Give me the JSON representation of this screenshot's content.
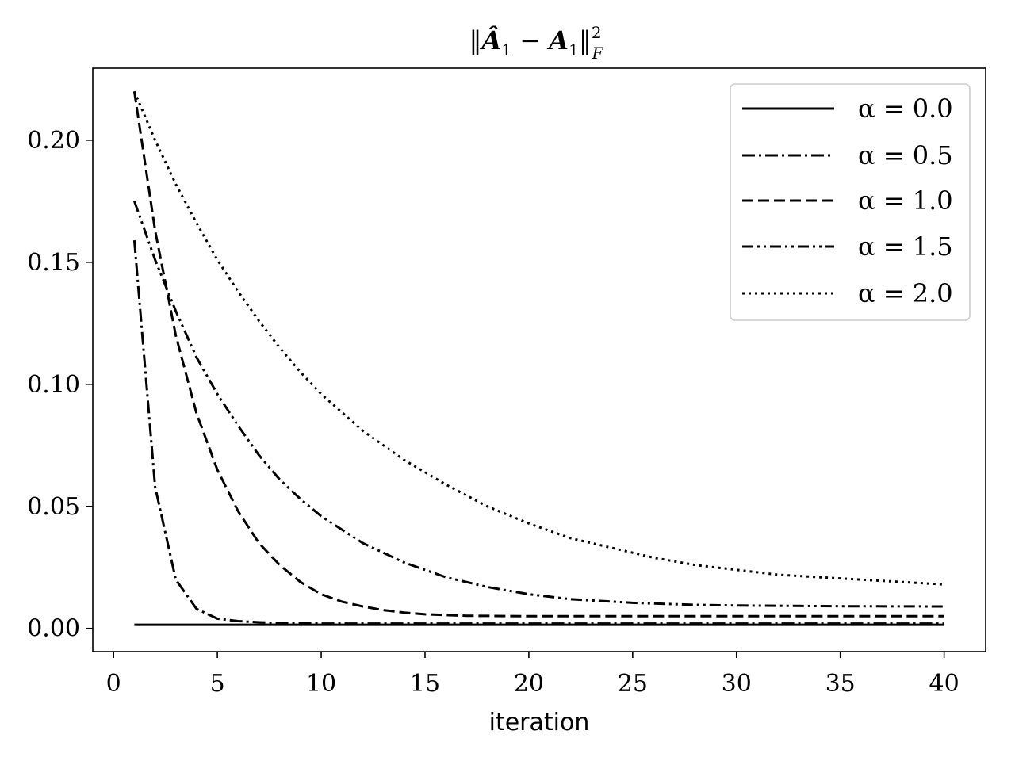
{
  "chart_data": {
    "type": "line",
    "title_parts": {
      "open": "‖",
      "hat_symbol": "Â",
      "sub1": "1",
      "minus": " − ",
      "symbol": "A",
      "sub2": "1",
      "close": "‖",
      "sup": "2",
      "sub_F": "F"
    },
    "xlabel": "iteration",
    "ylabel": "",
    "xlim": [
      -1,
      42
    ],
    "ylim": [
      -0.0095,
      0.2295
    ],
    "xticks": [
      0,
      5,
      10,
      15,
      20,
      25,
      30,
      35,
      40
    ],
    "xtick_labels": [
      "0",
      "5",
      "10",
      "15",
      "20",
      "25",
      "30",
      "35",
      "40"
    ],
    "yticks": [
      0.0,
      0.05,
      0.1,
      0.15,
      0.2
    ],
    "ytick_labels": [
      "0.00",
      "0.05",
      "0.10",
      "0.15",
      "0.20"
    ],
    "legend_position": "top-right",
    "grid": false,
    "series": [
      {
        "name": "α = 0.0",
        "style": "solid",
        "x": [
          1,
          2,
          3,
          4,
          5,
          6,
          8,
          10,
          15,
          20,
          25,
          30,
          35,
          40
        ],
        "y": [
          0.0015,
          0.0015,
          0.0015,
          0.0015,
          0.0015,
          0.0015,
          0.0015,
          0.0015,
          0.0015,
          0.0015,
          0.0015,
          0.0015,
          0.0015,
          0.0015
        ]
      },
      {
        "name": "α = 0.5",
        "style": "dashdot",
        "x": [
          1,
          2,
          3,
          4,
          5,
          6,
          7,
          8,
          10,
          15,
          20,
          25,
          30,
          35,
          40
        ],
        "y": [
          0.159,
          0.058,
          0.02,
          0.008,
          0.004,
          0.003,
          0.0025,
          0.0022,
          0.002,
          0.002,
          0.002,
          0.002,
          0.002,
          0.002,
          0.002
        ]
      },
      {
        "name": "α = 1.0",
        "style": "dashed",
        "x": [
          1,
          2,
          3,
          4,
          5,
          6,
          7,
          8,
          9,
          10,
          11,
          12,
          13,
          14,
          15,
          17,
          20,
          25,
          30,
          35,
          40
        ],
        "y": [
          0.22,
          0.163,
          0.12,
          0.088,
          0.065,
          0.048,
          0.035,
          0.026,
          0.019,
          0.014,
          0.011,
          0.009,
          0.0075,
          0.0065,
          0.0058,
          0.0052,
          0.005,
          0.005,
          0.005,
          0.005,
          0.005
        ]
      },
      {
        "name": "α = 1.5",
        "style": "dashdotdot",
        "x": [
          1,
          2,
          3,
          4,
          5,
          6,
          7,
          8,
          9,
          10,
          12,
          14,
          16,
          18,
          20,
          22,
          25,
          28,
          30,
          35,
          40
        ],
        "y": [
          0.175,
          0.151,
          0.13,
          0.111,
          0.096,
          0.083,
          0.071,
          0.061,
          0.053,
          0.046,
          0.035,
          0.027,
          0.021,
          0.017,
          0.014,
          0.012,
          0.0105,
          0.0097,
          0.0094,
          0.0091,
          0.009
        ]
      },
      {
        "name": "α = 2.0",
        "style": "dotted",
        "x": [
          1,
          2,
          3,
          4,
          5,
          6,
          7,
          8,
          9,
          10,
          12,
          14,
          16,
          18,
          20,
          22,
          24,
          26,
          28,
          30,
          32,
          34,
          36,
          38,
          40
        ],
        "y": [
          0.22,
          0.2,
          0.182,
          0.166,
          0.151,
          0.138,
          0.126,
          0.115,
          0.105,
          0.096,
          0.081,
          0.069,
          0.059,
          0.05,
          0.043,
          0.037,
          0.033,
          0.029,
          0.026,
          0.024,
          0.022,
          0.021,
          0.02,
          0.019,
          0.018
        ]
      }
    ]
  }
}
